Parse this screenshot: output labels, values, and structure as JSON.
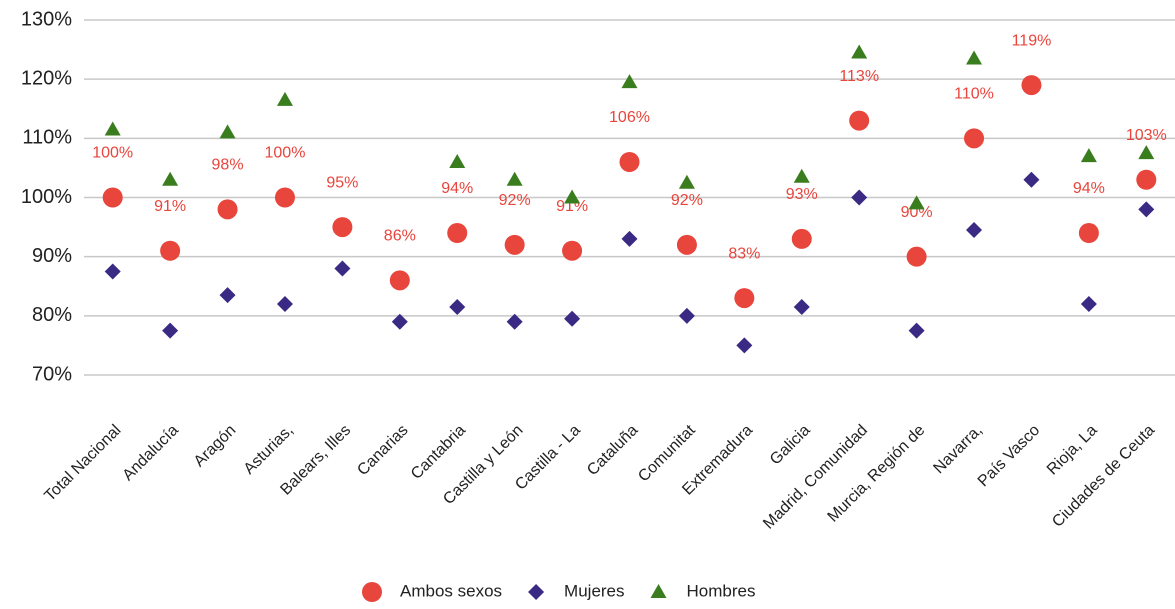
{
  "chart_data": {
    "type": "dot",
    "categories": [
      "Total Nacional",
      "Andalucía",
      "Aragón",
      "Asturias,",
      "Balears, Illes",
      "Canarias",
      "Cantabria",
      "Castilla y León",
      "Castilla - La",
      "Cataluña",
      "Comunitat",
      "Extremadura",
      "Galicia",
      "Madrid, Comunidad",
      "Murcia, Región de",
      "Navarra,",
      "País Vasco",
      "Rioja, La",
      "Ciudades de Ceuta"
    ],
    "series": [
      {
        "name": "Ambos sexos",
        "color": "#e8453c",
        "marker": "circle",
        "values": [
          100,
          91,
          98,
          100,
          95,
          86,
          94,
          92,
          91,
          106,
          92,
          83,
          93,
          113,
          90,
          110,
          119,
          94,
          103
        ],
        "value_labels": [
          "100%",
          "91%",
          "98%",
          "100%",
          "95%",
          "86%",
          "94%",
          "92%",
          "91%",
          "106%",
          "92%",
          "83%",
          "93%",
          "113%",
          "90%",
          "110%",
          "119%",
          "94%",
          "103%"
        ]
      },
      {
        "name": "Mujeres",
        "color": "#3b2a84",
        "marker": "diamond",
        "values": [
          87.5,
          77.5,
          83.5,
          82,
          88,
          79,
          81.5,
          79,
          79.5,
          93,
          80,
          75,
          81.5,
          100,
          77.5,
          94.5,
          103,
          82,
          98
        ]
      },
      {
        "name": "Hombres",
        "color": "#3a7d1f",
        "marker": "triangle",
        "values": [
          111.5,
          103,
          111,
          116.5,
          null,
          null,
          106,
          103,
          100,
          119.5,
          102.5,
          null,
          103.5,
          124.5,
          99,
          123.5,
          null,
          107,
          107.5
        ]
      }
    ],
    "ylim": [
      70,
      130
    ],
    "yticks": [
      {
        "value": 70,
        "label": "70%"
      },
      {
        "value": 80,
        "label": "80%"
      },
      {
        "value": 90,
        "label": "90%"
      },
      {
        "value": 100,
        "label": "100%"
      },
      {
        "value": 110,
        "label": "110%"
      },
      {
        "value": 120,
        "label": "120%"
      },
      {
        "value": 130,
        "label": "130%"
      }
    ],
    "grid": true,
    "legend": "bottom"
  }
}
